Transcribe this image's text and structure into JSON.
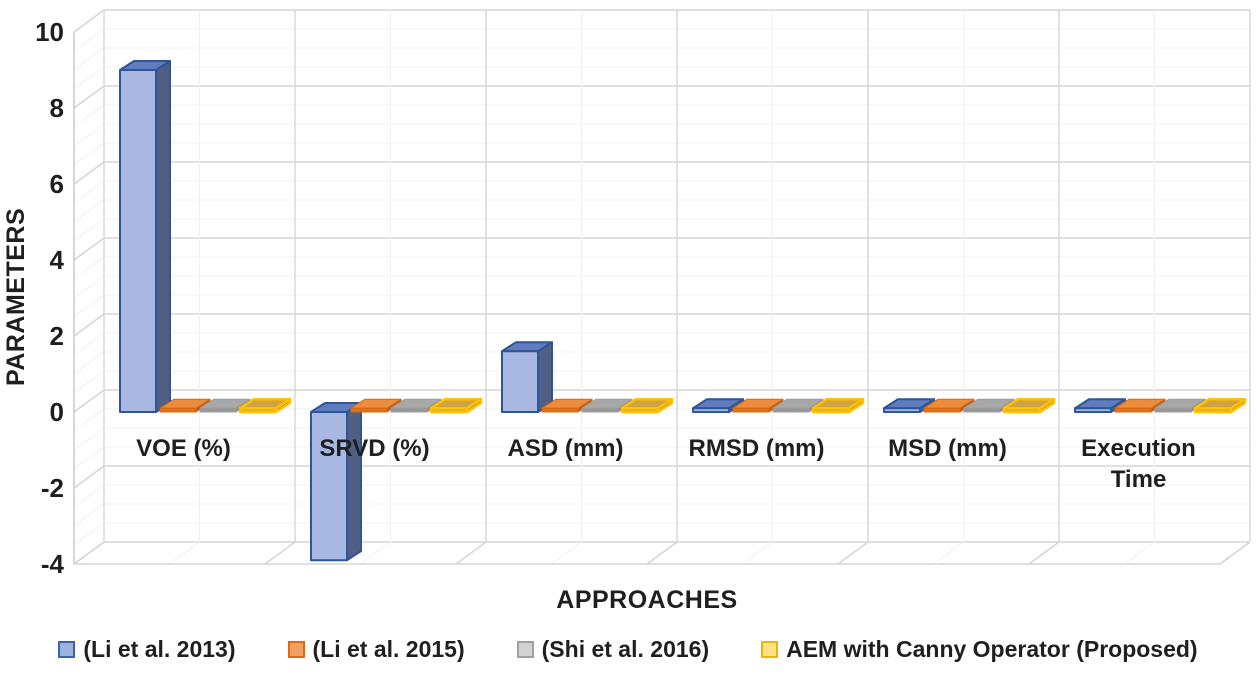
{
  "chart_data": {
    "type": "bar",
    "variant": "3d-clustered-column",
    "title": "",
    "xlabel": "APPROACHES",
    "ylabel": "PARAMETERS",
    "ylim": [
      -4,
      10
    ],
    "y_major_step": 2,
    "y_minor_step": 0.5,
    "grid": true,
    "legend_position": "bottom",
    "y_ticks": [
      10,
      8,
      6,
      4,
      2,
      0,
      -2,
      -4
    ],
    "categories": [
      "VOE (%)",
      "SRVD (%)",
      "ASD (mm)",
      "RMSD (mm)",
      "MSD (mm)",
      "Execution Time"
    ],
    "category_label_lines": [
      [
        "VOE (%)"
      ],
      [
        "SRVD (%)"
      ],
      [
        "ASD (mm)"
      ],
      [
        "RMSD (mm)"
      ],
      [
        "MSD (mm)"
      ],
      [
        "Execution",
        "Time"
      ]
    ],
    "series": [
      {
        "name": "(Li et al. 2013)",
        "values": [
          9.0,
          -3.9,
          1.6,
          0.1,
          0.1,
          0.1
        ],
        "faces": {
          "front": "#A9B8E2",
          "top": "#5E7CBE",
          "side": "#525E84",
          "line": "#2E5597",
          "lw": 2
        },
        "swatch": {
          "fill": "#9DB3DF",
          "border": "#3E61AC"
        }
      },
      {
        "name": "(Li et al. 2015)",
        "values": [
          0.1,
          0.1,
          0.1,
          0.1,
          0.1,
          0.1
        ],
        "faces": {
          "front": "#E2711C",
          "top": "#ED8C3D",
          "side": "#C05B12",
          "line": "#D26911",
          "lw": 1
        },
        "swatch": {
          "fill": "#F2A05F",
          "border": "#E0690F"
        }
      },
      {
        "name": "(Shi et al. 2016)",
        "values": [
          0.1,
          0.1,
          0.1,
          0.1,
          0.1,
          0.1
        ],
        "faces": {
          "front": "#979797",
          "top": "#A8A8A8",
          "side": "#8A8A8A",
          "line": "#9C9C9C",
          "lw": 1
        },
        "swatch": {
          "fill": "#D2D2D2",
          "border": "#A0A0A0"
        }
      },
      {
        "name": "AEM with Canny Operator (Proposed)",
        "values": [
          0.1,
          0.1,
          0.1,
          0.1,
          0.1,
          0.1
        ],
        "faces": {
          "front": "#D9A832",
          "top": "#CDA349",
          "side": "#B08E2E",
          "line": "#FFC100",
          "lw": 2.5
        },
        "swatch": {
          "fill": "#FFE18A",
          "border": "#F0B400"
        }
      }
    ]
  },
  "colors": {
    "text": "#1f1f1f",
    "major_grid": "#D5D5D5",
    "minor_grid": "#F0F0F0",
    "axis_line": "#C6C6C6",
    "background": "#FFFFFF"
  }
}
